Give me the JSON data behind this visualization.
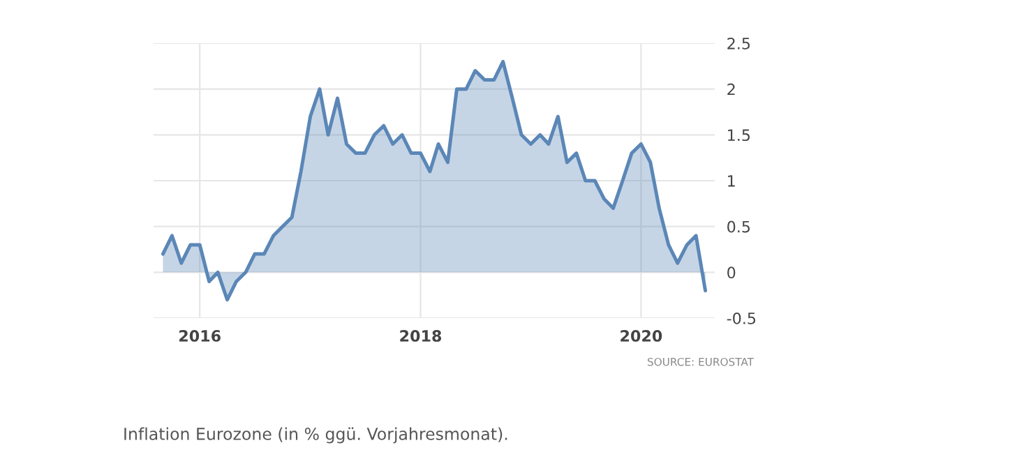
{
  "chart_data": {
    "type": "area",
    "x": [
      "2015-09",
      "2015-10",
      "2015-11",
      "2015-12",
      "2016-01",
      "2016-02",
      "2016-03",
      "2016-04",
      "2016-05",
      "2016-06",
      "2016-07",
      "2016-08",
      "2016-09",
      "2016-10",
      "2016-11",
      "2016-12",
      "2017-01",
      "2017-02",
      "2017-03",
      "2017-04",
      "2017-05",
      "2017-06",
      "2017-07",
      "2017-08",
      "2017-09",
      "2017-10",
      "2017-11",
      "2017-12",
      "2018-01",
      "2018-02",
      "2018-03",
      "2018-04",
      "2018-05",
      "2018-06",
      "2018-07",
      "2018-08",
      "2018-09",
      "2018-10",
      "2018-11",
      "2018-12",
      "2019-01",
      "2019-02",
      "2019-03",
      "2019-04",
      "2019-05",
      "2019-06",
      "2019-07",
      "2019-08",
      "2019-09",
      "2019-10",
      "2019-11",
      "2019-12",
      "2020-01",
      "2020-02",
      "2020-03",
      "2020-04",
      "2020-05",
      "2020-06",
      "2020-07",
      "2020-08"
    ],
    "series": [
      {
        "color": "#5b87b7",
        "values": [
          0.2,
          0.4,
          0.1,
          0.3,
          0.3,
          -0.1,
          0.0,
          -0.3,
          -0.1,
          0.0,
          0.2,
          0.2,
          0.4,
          0.5,
          0.6,
          1.1,
          1.7,
          2.0,
          1.5,
          1.9,
          1.4,
          1.3,
          1.3,
          1.5,
          1.6,
          1.4,
          1.5,
          1.3,
          1.3,
          1.1,
          1.4,
          1.2,
          2.0,
          2.0,
          2.2,
          2.1,
          2.1,
          2.3,
          1.9,
          1.5,
          1.4,
          1.5,
          1.4,
          1.7,
          1.2,
          1.3,
          1.0,
          1.0,
          0.8,
          0.7,
          1.0,
          1.3,
          1.4,
          1.2,
          0.7,
          0.3,
          0.1,
          0.3,
          0.4,
          -0.2
        ]
      }
    ],
    "xlim": [
      "2015-08",
      "2020-09"
    ],
    "xticks": [
      {
        "value": "2016-01",
        "label": "2016"
      },
      {
        "value": "2018-01",
        "label": "2018"
      },
      {
        "value": "2020-01",
        "label": "2020"
      }
    ],
    "ylim": [
      -0.5,
      2.5
    ],
    "yticks": [
      {
        "value": -0.5,
        "label": "-0.5"
      },
      {
        "value": 0,
        "label": "0"
      },
      {
        "value": 0.5,
        "label": "0.5"
      },
      {
        "value": 1,
        "label": "1"
      },
      {
        "value": 1.5,
        "label": "1.5"
      },
      {
        "value": 2,
        "label": "2"
      },
      {
        "value": 2.5,
        "label": "2.5"
      }
    ],
    "grid": true,
    "legend": false,
    "annotations": [
      "SOURCE: EUROSTAT",
      "Inflation Eurozone (in % ggü. Vorjahresmonat)."
    ]
  }
}
